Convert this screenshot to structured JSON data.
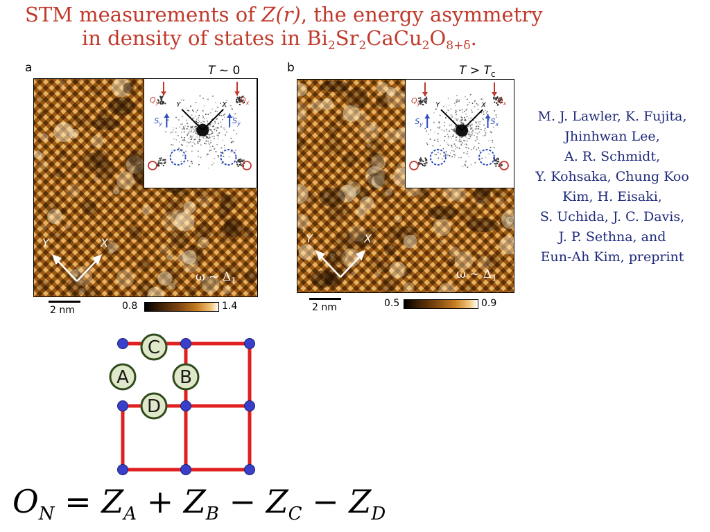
{
  "title": {
    "line1_prefix": "STM measurements of ",
    "line1_var": "Z(r)",
    "line1_suffix": ", the energy asymmetry",
    "line2_prefix": "in density of states in Bi",
    "line2_formula_parts": [
      "2",
      "Sr",
      "2",
      "CaCu",
      "2",
      "O",
      "8+δ",
      "."
    ]
  },
  "panel_a": {
    "letter": "a",
    "temp_var": "T",
    "temp_rest": " ~ 0",
    "omega_text": "ω ~ Δ",
    "omega_sub": "1",
    "scale_label": "2 nm",
    "cbar_min": "0.8",
    "cbar_max": "1.4",
    "axis_x": "X",
    "axis_y": "Y",
    "inset_labels": {
      "qy": "Q",
      "qy_sub": "y",
      "qx": "Q",
      "qx_sub": "x",
      "sy": "S",
      "sy_sub": "y",
      "sx": "S",
      "sx_sub": "y",
      "y": "Y",
      "x": "X"
    }
  },
  "panel_b": {
    "letter": "b",
    "temp_var": "T",
    "temp_rest": " > ",
    "temp_var2": "T",
    "temp_sub": "c",
    "omega_text": "ω ~ Δ",
    "omega_sub": "1",
    "scale_label": "2 nm",
    "cbar_min": "0.5",
    "cbar_max": "0.9",
    "axis_x": "X",
    "axis_y": "Y",
    "inset_labels": {
      "qy": "Q",
      "qy_sub": "y",
      "qx": "Q",
      "qx_sub": "x",
      "sy": "S",
      "sy_sub": "y",
      "sx": "S",
      "sx_sub": "x",
      "y": "Y",
      "x": "X"
    }
  },
  "authors": [
    "M. J. Lawler, K. Fujita,",
    "Jhinhwan Lee,",
    "A. R. Schmidt,",
    "Y. Kohsaka, Chung Koo",
    "Kim, H. Eisaki,",
    "S. Uchida, J. C. Davis,",
    "J. P. Sethna, and",
    "Eun-Ah Kim, preprint"
  ],
  "lattice": {
    "site_a": "A",
    "site_b": "B",
    "site_c": "C",
    "site_d": "D"
  },
  "equation": {
    "lhs": "O",
    "lhs_sub": "N",
    "eq": " = ",
    "t1": "Z",
    "t1_sub": "A",
    "op1": " + ",
    "t2": "Z",
    "t2_sub": "B",
    "op2": " − ",
    "t3": "Z",
    "t3_sub": "C",
    "op3": " − ",
    "t4": "Z",
    "t4_sub": "D"
  },
  "colors": {
    "title": "#c0392b",
    "authors": "#1f2a7a",
    "lattice_bond": "#e02020",
    "lattice_node": "#3a3fc9",
    "site_fill": "#dfe8c8",
    "site_border": "#2f4a1c",
    "inset_red": "#c0392b",
    "inset_blue": "#2b4bbf"
  }
}
